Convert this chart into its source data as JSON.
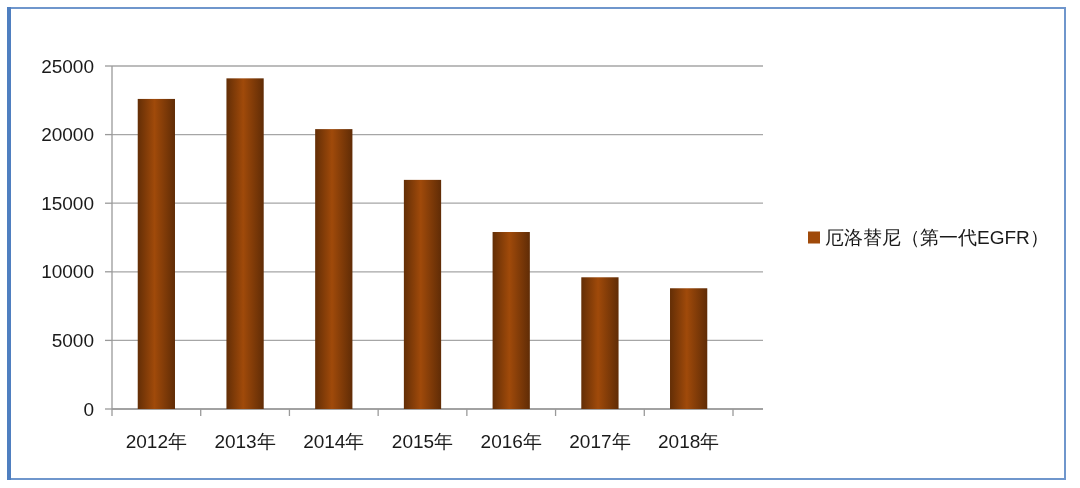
{
  "chart_data": {
    "type": "bar",
    "categories": [
      "2012年",
      "2013年",
      "2014年",
      "2015年",
      "2016年",
      "2017年",
      "2018年"
    ],
    "series": [
      {
        "name": "厄洛替尼（第一代EGFR）",
        "color": "#a04a0a",
        "values": [
          22600,
          24100,
          20400,
          16700,
          12900,
          9600,
          8800
        ]
      }
    ],
    "ylim": [
      0,
      25000
    ],
    "yticks": [
      0,
      5000,
      10000,
      15000,
      20000,
      25000
    ],
    "grid": "y",
    "legend": "right"
  }
}
